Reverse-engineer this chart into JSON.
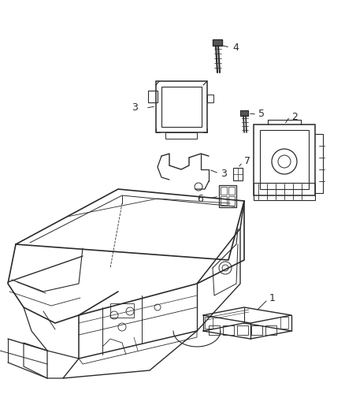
{
  "background_color": "#ffffff",
  "line_color": "#2a2a2a",
  "callout_color": "#2a2a2a",
  "fig_width": 4.38,
  "fig_height": 5.33,
  "dpi": 100
}
